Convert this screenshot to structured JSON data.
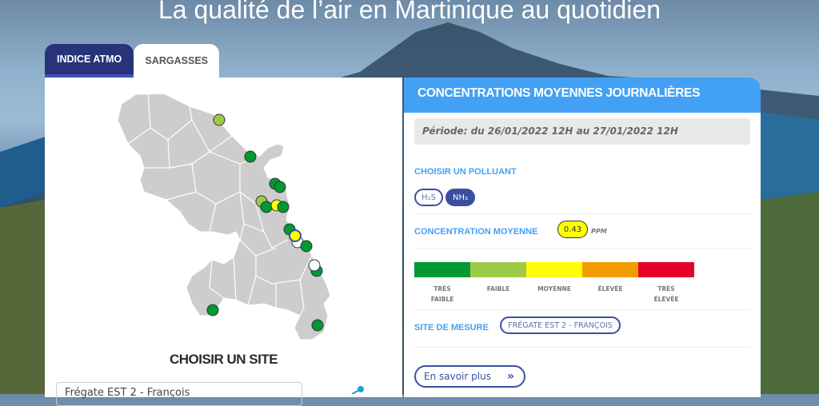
{
  "hero": {
    "title": "La qualité de l’air en Martinique au quotidien"
  },
  "tabs": [
    {
      "label": "INDICE ATMO",
      "active": true
    },
    {
      "label": "SARGASSES",
      "active": false
    }
  ],
  "left": {
    "site_title": "CHOISIR UN SITE",
    "site_select_value": "Frégate EST 2 - François"
  },
  "right": {
    "header": "CONCENTRATIONS MOYENNES JOURNALIÈRES",
    "period": "Période: du 26/01/2022 12H au 27/01/2022 12H",
    "pollutant_label": "CHOISIR UN POLLUANT",
    "pollutants": [
      {
        "label": "H₂S",
        "selected": false
      },
      {
        "label": "NH₃",
        "selected": true
      }
    ],
    "concentration_label": "CONCENTRATION MOYENNE",
    "concentration_value": "0.43",
    "concentration_unit": "PPM",
    "scale": [
      {
        "label": "TRÈS FAIBLE",
        "color": "#009933"
      },
      {
        "label": "FAIBLE",
        "color": "#9dcb47"
      },
      {
        "label": "MOYENNE",
        "color": "#ffff00"
      },
      {
        "label": "ÉLEVÉE",
        "color": "#f39c00"
      },
      {
        "label": "TRÈS ÉLEVÉE",
        "color": "#e4002b"
      }
    ],
    "site_label": "SITE DE MESURE",
    "site_value": "FRÉGATE EST 2 - FRANÇOIS",
    "more_label": "En savoir plus",
    "more_icon": "»"
  },
  "colors": {
    "accent": "#42a1f5",
    "navy": "#27347a",
    "pill": "#3b4fa0"
  }
}
